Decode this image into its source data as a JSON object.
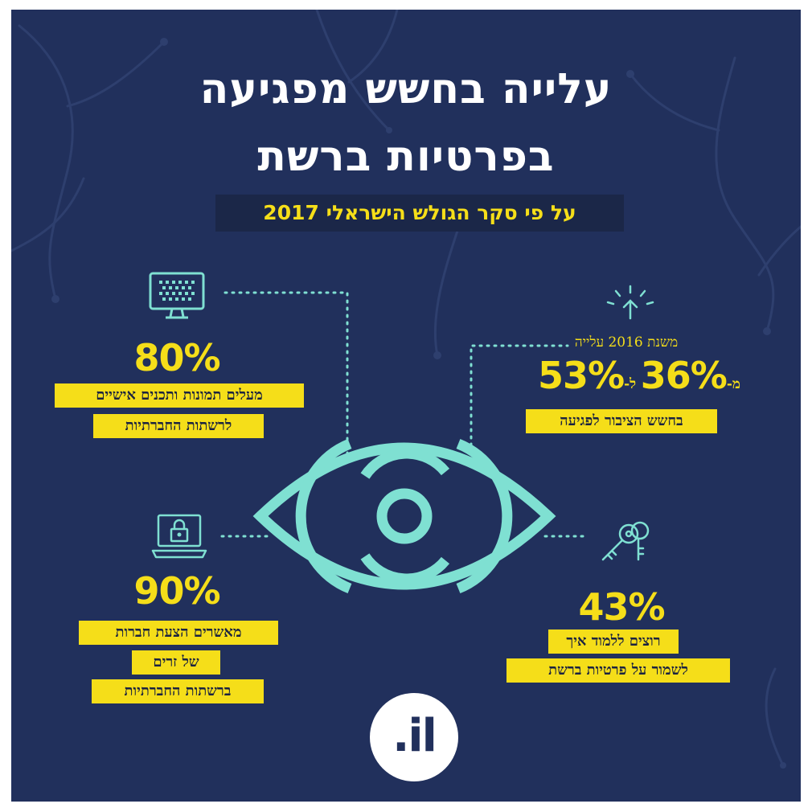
{
  "title": {
    "line1": "עלייה בחשש מפגיעה",
    "line2": "בפרטיות ברשת",
    "subtitle": "על פי סקר הגולש הישראלי 2017"
  },
  "stats": {
    "photos": {
      "value": "80%",
      "lines": [
        "מעלים תמונות ותכנים אישיים",
        "לרשתות החברתיות"
      ],
      "icon": "monitor-icon"
    },
    "fear": {
      "since": "משנת 2016 עלייה",
      "from_prefix": "מ-",
      "from_value": "36%",
      "to_prefix": "ל-",
      "to_value": "53%",
      "lines": [
        "בחשש הציבור לפגיעה"
      ],
      "icon": "arrow-up-icon"
    },
    "friends": {
      "value": "90%",
      "lines": [
        "מאשרים הצעת חברות",
        "של זרים",
        "ברשתות החברתיות"
      ],
      "icon": "laptop-lock-icon"
    },
    "learn": {
      "value": "43%",
      "lines": [
        "רוצים ללמוד איך",
        "לשמור על פרטיות ברשת"
      ],
      "icon": "keys-icon"
    }
  },
  "logo": {
    "text": ".il"
  },
  "colors": {
    "background": "#21305c",
    "accent": "#f5de19",
    "eye": "#7fe0d2",
    "text": "#ffffff"
  }
}
